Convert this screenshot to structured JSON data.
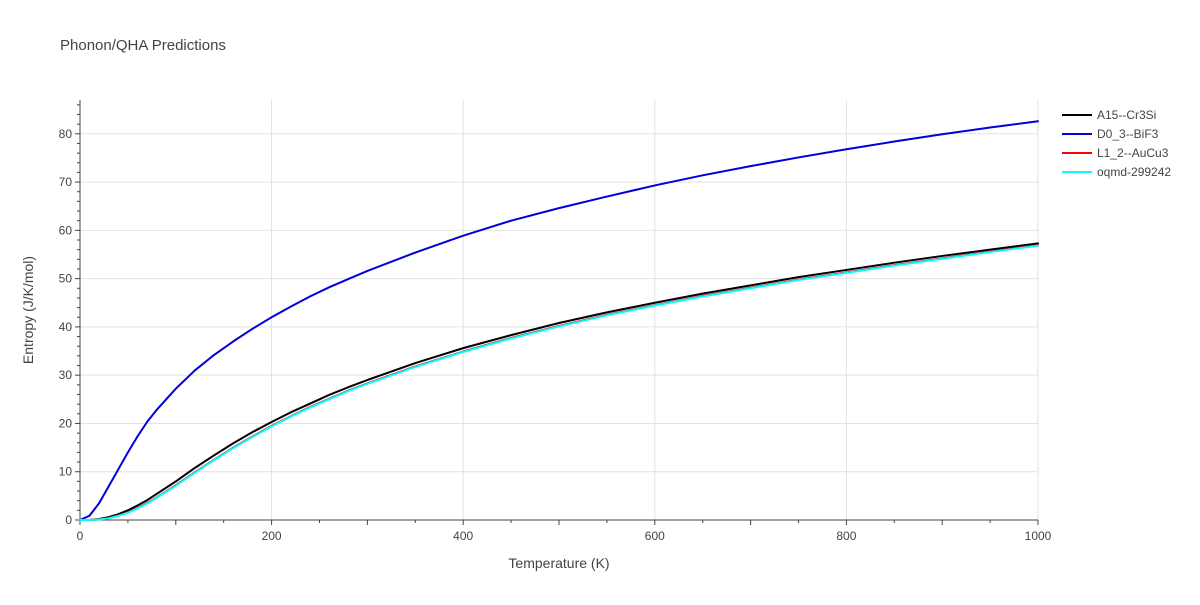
{
  "chart_data": {
    "type": "line",
    "title": "Phonon/QHA Predictions",
    "xlabel": "Temperature (K)",
    "ylabel": "Entropy (J/K/mol)",
    "xlim": [
      0,
      1000
    ],
    "ylim": [
      0,
      87
    ],
    "xticks": [
      0,
      200,
      400,
      600,
      800,
      1000
    ],
    "yticks": [
      0,
      10,
      20,
      30,
      40,
      50,
      60,
      70,
      80
    ],
    "grid": true,
    "legend_position": "right",
    "x": [
      0,
      10,
      20,
      30,
      40,
      50,
      60,
      70,
      80,
      100,
      120,
      140,
      160,
      180,
      200,
      220,
      240,
      260,
      280,
      300,
      350,
      400,
      450,
      500,
      550,
      600,
      650,
      700,
      750,
      800,
      850,
      900,
      950,
      1000
    ],
    "series": [
      {
        "name": "A15--Cr3Si",
        "color": "#000000",
        "values": [
          0,
          0.02,
          0.2,
          0.6,
          1.2,
          2.0,
          3.0,
          4.1,
          5.4,
          8.0,
          10.8,
          13.4,
          15.9,
          18.2,
          20.3,
          22.3,
          24.1,
          25.9,
          27.5,
          29.0,
          32.5,
          35.6,
          38.3,
          40.8,
          43.0,
          45.0,
          46.9,
          48.6,
          50.3,
          51.8,
          53.3,
          54.7,
          56.0,
          57.3
        ]
      },
      {
        "name": "D0_3--BiF3",
        "color": "#0000dd",
        "values": [
          0,
          0.9,
          3.5,
          7.0,
          10.5,
          14.0,
          17.3,
          20.3,
          22.8,
          27.2,
          31.0,
          34.2,
          37.0,
          39.6,
          42.0,
          44.2,
          46.3,
          48.2,
          49.9,
          51.6,
          55.4,
          58.9,
          62.0,
          64.6,
          67.0,
          69.3,
          71.4,
          73.3,
          75.1,
          76.8,
          78.4,
          79.9,
          81.3,
          82.6
        ]
      },
      {
        "name": "L1_2--AuCu3",
        "color": "#ff0000",
        "values": [
          0,
          0.01,
          0.1,
          0.4,
          0.9,
          1.6,
          2.5,
          3.5,
          4.7,
          7.2,
          9.9,
          12.5,
          15.0,
          17.3,
          19.5,
          21.5,
          23.4,
          25.1,
          26.8,
          28.3,
          31.8,
          34.9,
          37.7,
          40.2,
          42.5,
          44.5,
          46.4,
          48.1,
          49.8,
          51.3,
          52.8,
          54.2,
          55.6,
          56.9
        ]
      },
      {
        "name": "oqmd-299242",
        "color": "#00ffff",
        "values": [
          0,
          0.01,
          0.1,
          0.35,
          0.85,
          1.5,
          2.4,
          3.4,
          4.6,
          7.1,
          9.8,
          12.4,
          14.9,
          17.2,
          19.4,
          21.4,
          23.3,
          25.0,
          26.7,
          28.2,
          31.7,
          34.8,
          37.6,
          40.1,
          42.4,
          44.4,
          46.3,
          48.0,
          49.7,
          51.2,
          52.7,
          54.1,
          55.5,
          56.8
        ]
      }
    ]
  }
}
